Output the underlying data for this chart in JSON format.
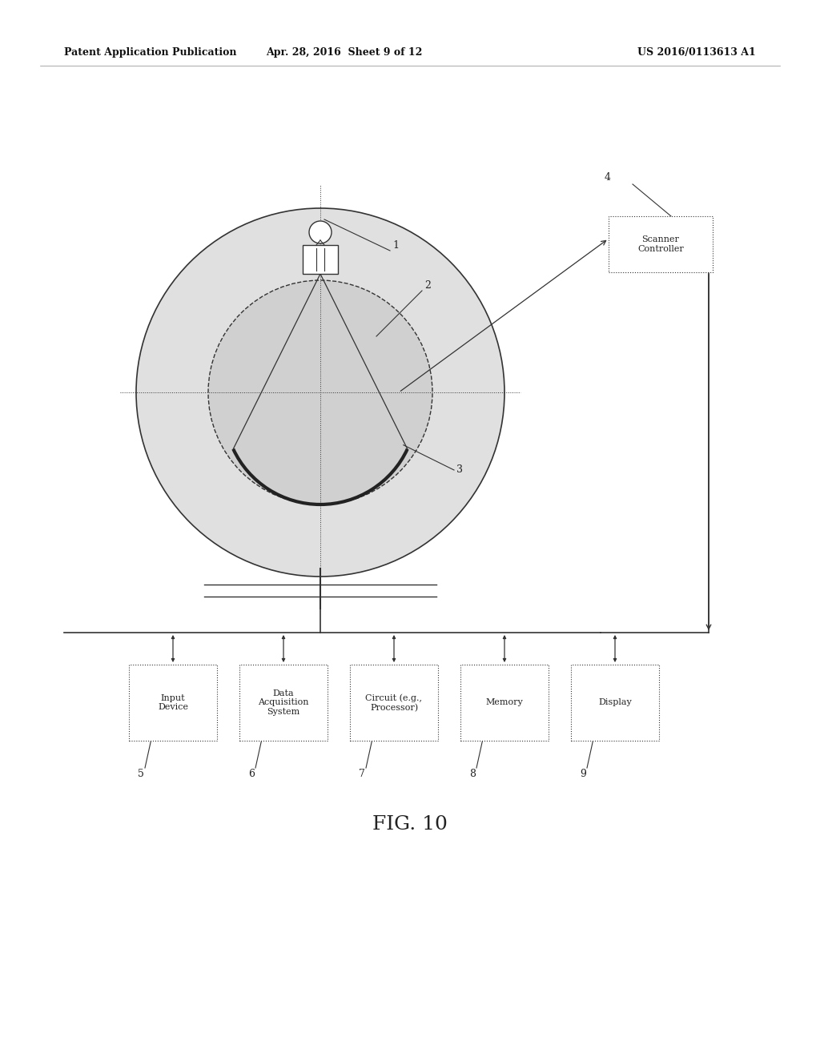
{
  "bg_color": "#ffffff",
  "header_left": "Patent Application Publication",
  "header_mid": "Apr. 28, 2016  Sheet 9 of 12",
  "header_right": "US 2016/0113613 A1",
  "fig_label": "FIG. 10",
  "line_color": "#333333",
  "fill_outer": "#e0e0e0",
  "fill_inner": "#d0d0d0",
  "boxes": [
    {
      "label": "Input\nDevice",
      "num": "5"
    },
    {
      "label": "Data\nAcquisition\nSystem",
      "num": "6"
    },
    {
      "label": "Circuit (e.g.,\nProcessor)",
      "num": "7"
    },
    {
      "label": "Memory",
      "num": "8"
    },
    {
      "label": "Display",
      "num": "9"
    }
  ]
}
